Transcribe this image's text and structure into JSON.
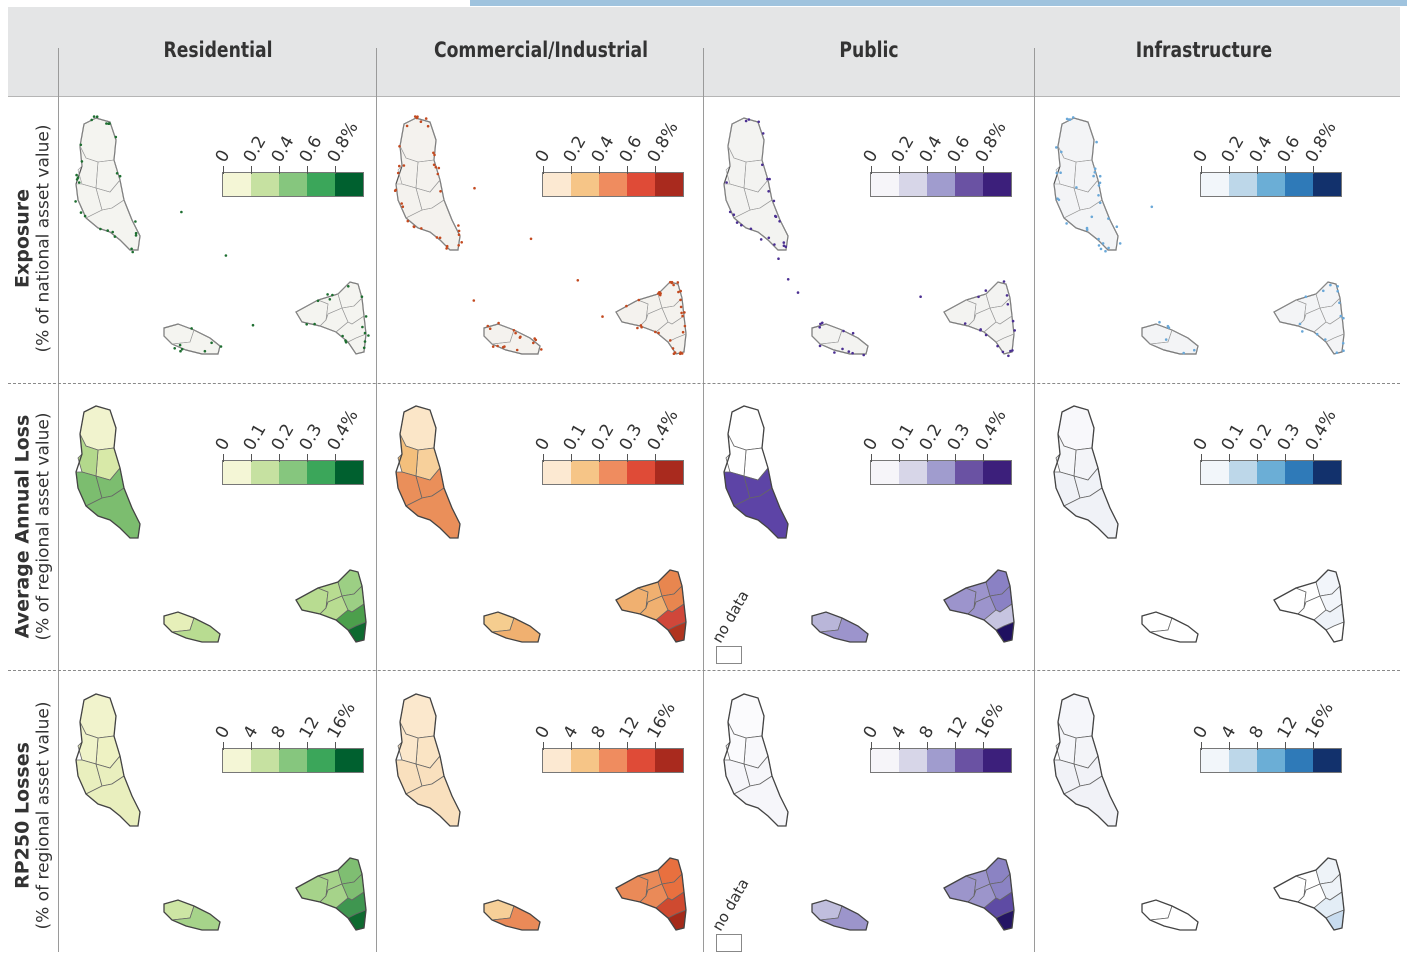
{
  "columns": [
    "Residential",
    "Commercial/Industrial",
    "Public",
    "Infrastructure"
  ],
  "rows": [
    {
      "title": "Exposure",
      "subtitle": "(% of national asset value)",
      "legend_ticks": [
        "0",
        "0.2",
        "0.4",
        "0.6",
        "0.8%"
      ]
    },
    {
      "title": "Average Annual Loss",
      "subtitle": "(% of regional asset value)",
      "legend_ticks": [
        "0",
        "0.1",
        "0.2",
        "0.3",
        "0.4%"
      ]
    },
    {
      "title": "RP250 Losses",
      "subtitle": "(% of regional asset value)",
      "legend_ticks": [
        "0",
        "4",
        "8",
        "12",
        "16%"
      ]
    }
  ],
  "no_data_label": "no data",
  "palettes": {
    "green": [
      "#f4f6d6",
      "#c6e1a1",
      "#86c67e",
      "#3ba65a",
      "#00602f"
    ],
    "orange": [
      "#fce9d2",
      "#f6c587",
      "#ef8c5f",
      "#df4b37",
      "#a92a1e"
    ],
    "purple": [
      "#f6f5f9",
      "#d7d6e8",
      "#a09cce",
      "#6a52a3",
      "#3c1f7b"
    ],
    "blue": [
      "#f2f6fa",
      "#bdd7e9",
      "#6baed6",
      "#2f7ab8",
      "#12316c"
    ]
  },
  "map_fills": {
    "exposure": {
      "Residential": {
        "fill": "#f4f4f0",
        "dots": "#1d6e30"
      },
      "Commercial/Industrial": {
        "fill": "#f4f2ee",
        "dots": "#c34a20"
      },
      "Public": {
        "fill": "#f3f3f1",
        "dots": "#4b2f92"
      },
      "Infrastructure": {
        "fill": "#f3f4f6",
        "dots": "#6aa8d8"
      }
    },
    "aal": {
      "Residential": [
        "#f1f3ce",
        "#d8e9a8",
        "#b3d88c",
        "#7cbd6f",
        "#e6efb9",
        "#b8dc91",
        "#9ccf84",
        "#4c9f4c",
        "#0e6a30"
      ],
      "Commercial/Industrial": [
        "#fbe6c8",
        "#f7d09b",
        "#f3bf7c",
        "#ea8f5a",
        "#f5cd8f",
        "#f0b070",
        "#e8864f",
        "#d0473a",
        "#b0341f"
      ],
      "Public": [
        "#ffffff",
        "#ffffff",
        "#ffffff",
        "#5d44a6",
        "#b9b6d9",
        "#9c94cc",
        "#8a81c4",
        "#c6c4e0",
        "#1f1060"
      ],
      "Infrastructure": [
        "#f8f8fb",
        "#f3f4f8",
        "#f5f6f9",
        "#f0f2f7",
        "#ffffff",
        "#ffffff",
        "#f2f5fa",
        "#eef2f8",
        "#ffffff"
      ]
    },
    "rp250": {
      "Residential": [
        "#f1f3cc",
        "#eef2c3",
        "#eff3c9",
        "#e9efbe",
        "#cde5a4",
        "#a6d38a",
        "#7fbe72",
        "#3f9650",
        "#0f6a30"
      ],
      "Commercial/Industrial": [
        "#fbe8cd",
        "#fae4c4",
        "#fbe7cb",
        "#f9e0be",
        "#f6cf98",
        "#ea8a58",
        "#e8703f",
        "#cf4a30",
        "#a42a1a"
      ],
      "Public": [
        "#fbfbfd",
        "#f8f8fb",
        "#fbfbfd",
        "#f6f6fa",
        "#c0bedd",
        "#9c95cb",
        "#8b83c3",
        "#5e4ba4",
        "#241564"
      ],
      "Infrastructure": [
        "#f5f6fa",
        "#f3f4f8",
        "#f5f6fa",
        "#f1f2f7",
        "#ffffff",
        "#ffffff",
        "#eef3f8",
        "#e3edf6",
        "#c8dcef"
      ]
    }
  }
}
